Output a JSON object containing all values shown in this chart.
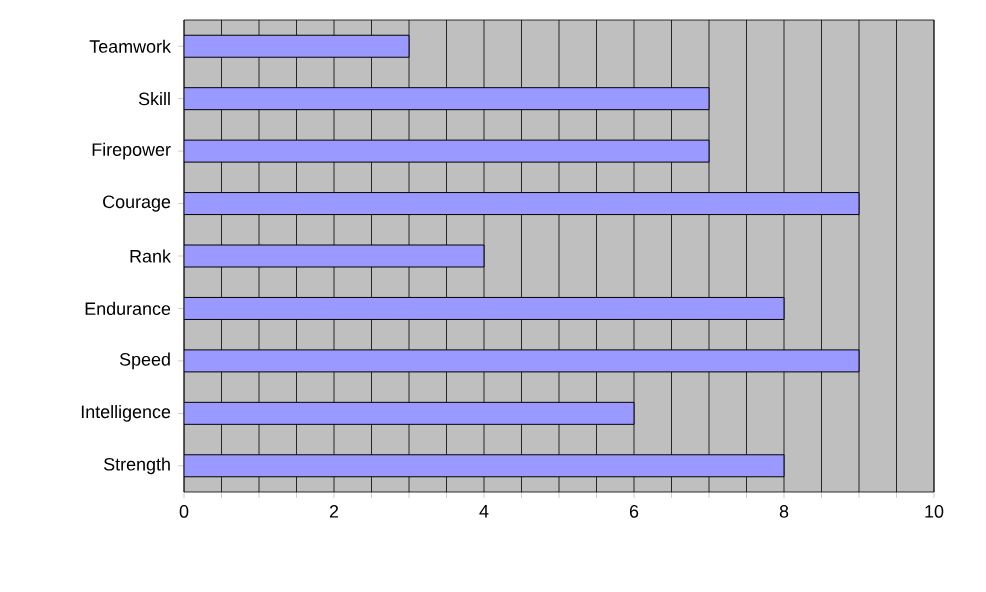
{
  "chart_data": {
    "type": "bar",
    "orientation": "horizontal",
    "categories": [
      "Teamwork",
      "Skill",
      "Firepower",
      "Courage",
      "Rank",
      "Endurance",
      "Speed",
      "Intelligence",
      "Strength"
    ],
    "values": [
      3,
      7,
      7,
      9,
      4,
      8,
      9,
      6,
      8
    ],
    "color": "#9999ff",
    "xlim": [
      0,
      10
    ],
    "xticks": [
      0,
      {
        "value": 0.5,
        "label": null
      },
      {
        "value": 1,
        "label": null
      },
      {
        "value": 1.5,
        "label": null
      },
      2,
      {
        "value": 2.5,
        "label": null
      },
      {
        "value": 3,
        "label": null
      },
      {
        "value": 3.5,
        "label": null
      },
      4,
      {
        "value": 4.5,
        "label": null
      },
      {
        "value": 5,
        "label": null
      },
      {
        "value": 5.5,
        "label": null
      },
      6,
      {
        "value": 6.5,
        "label": null
      },
      {
        "value": 7,
        "label": null
      },
      {
        "value": 7.5,
        "label": null
      },
      8,
      {
        "value": 8.5,
        "label": null
      },
      {
        "value": 9,
        "label": null
      },
      {
        "value": 9.5,
        "label": null
      },
      10
    ],
    "grid": "x"
  }
}
